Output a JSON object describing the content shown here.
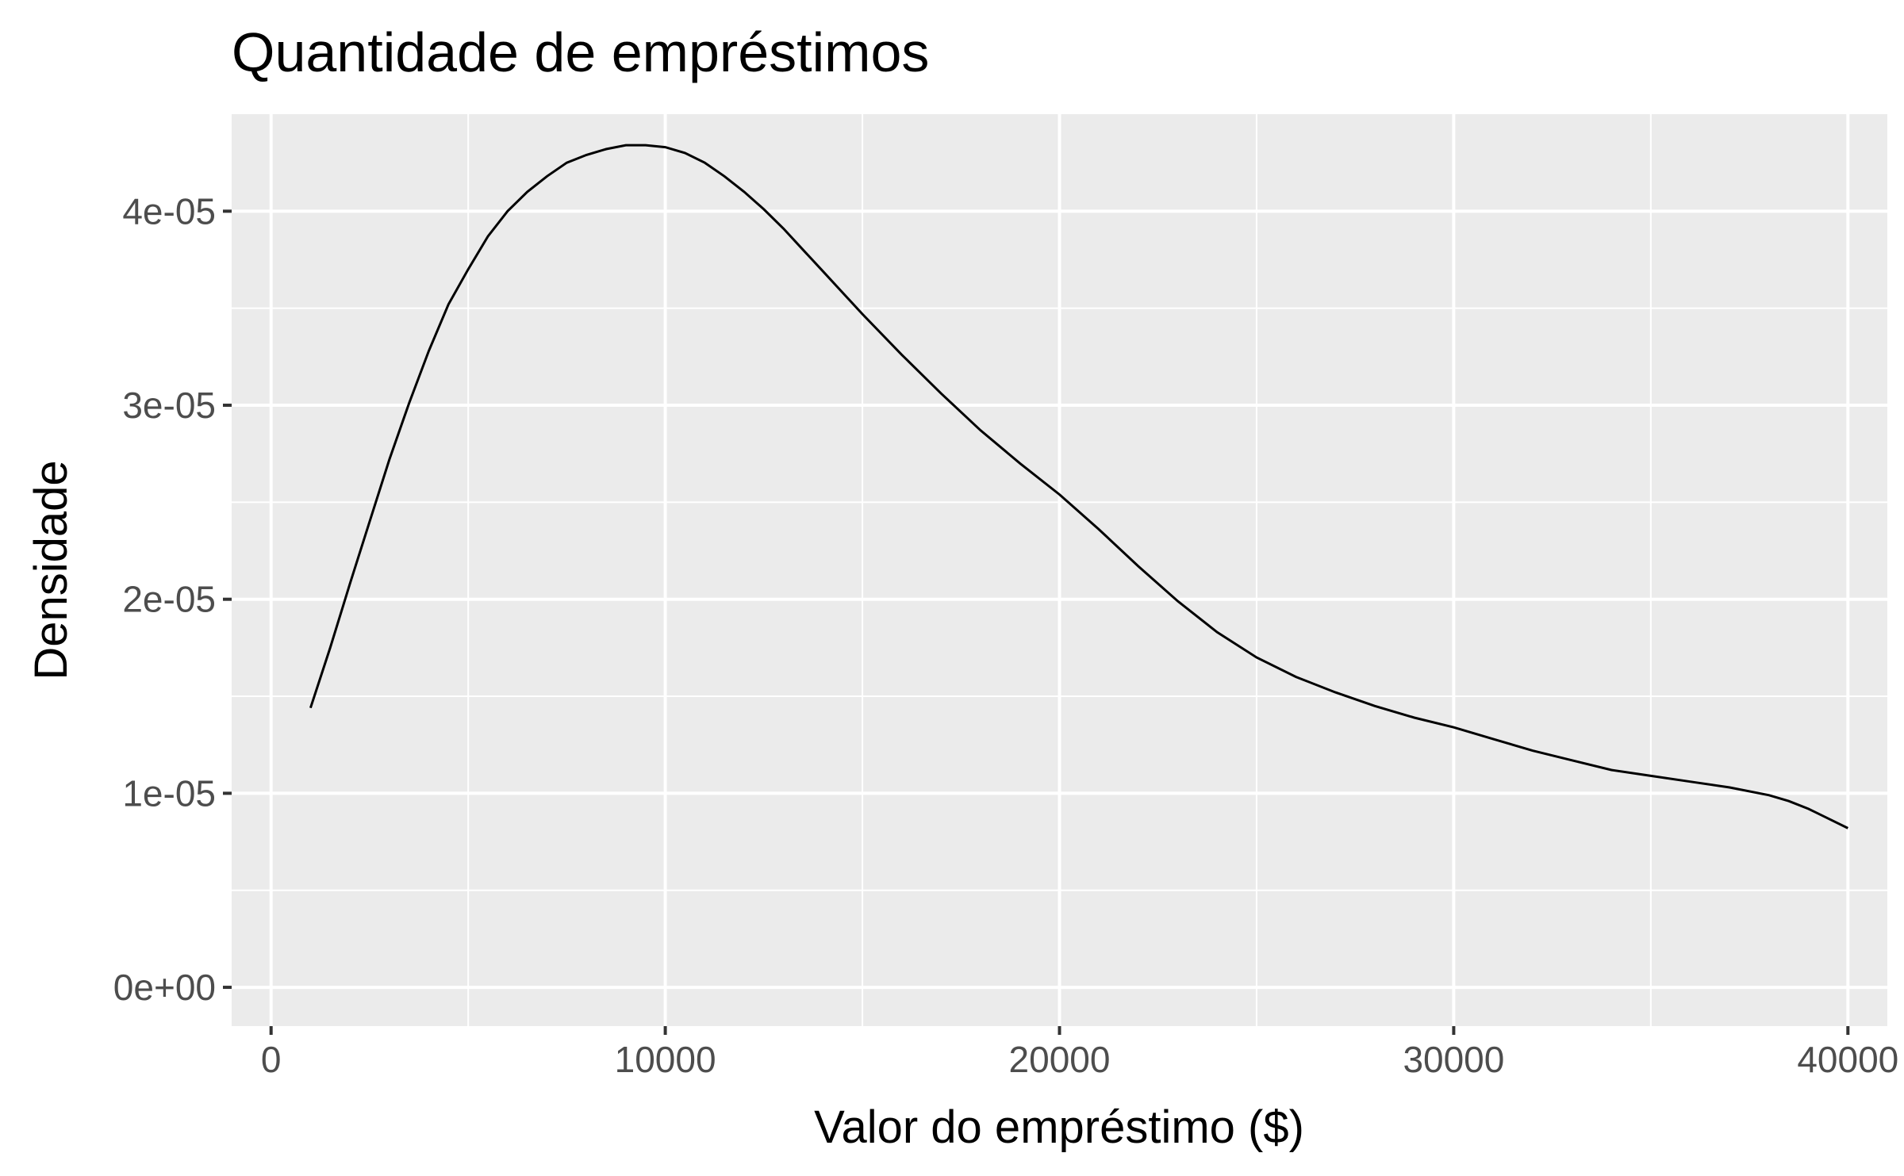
{
  "chart_data": {
    "type": "line",
    "title": "Quantidade de empréstimos",
    "xlabel": "Valor do empréstimo ($)",
    "ylabel": "Densidade",
    "xlim": [
      -1000,
      41000
    ],
    "ylim": [
      -2e-06,
      4.5e-05
    ],
    "x_ticks": [
      0,
      10000,
      20000,
      30000,
      40000
    ],
    "x_tick_labels": [
      "0",
      "10000",
      "20000",
      "30000",
      "40000"
    ],
    "y_ticks": [
      0,
      1e-05,
      2e-05,
      3e-05,
      4e-05
    ],
    "y_tick_labels": [
      "0e+00",
      "1e-05",
      "2e-05",
      "3e-05",
      "4e-05"
    ],
    "grid": true,
    "background_color": "#ebebeb",
    "grid_color": "#ffffff",
    "line_color": "#000000",
    "series": [
      {
        "x": [
          1000,
          1500,
          2000,
          2500,
          3000,
          3500,
          4000,
          4500,
          5000,
          5500,
          6000,
          6500,
          7000,
          7500,
          8000,
          8500,
          9000,
          9500,
          10000,
          10500,
          11000,
          11500,
          12000,
          12500,
          13000,
          13500,
          14000,
          14500,
          15000,
          16000,
          17000,
          18000,
          19000,
          20000,
          21000,
          22000,
          23000,
          24000,
          25000,
          26000,
          27000,
          28000,
          29000,
          30000,
          31000,
          32000,
          33000,
          34000,
          35000,
          36000,
          37000,
          38000,
          38500,
          39000,
          39500,
          40000
        ],
        "y": [
          1.44e-05,
          1.75e-05,
          2.08e-05,
          2.4e-05,
          2.72e-05,
          3.01e-05,
          3.28e-05,
          3.52e-05,
          3.7e-05,
          3.87e-05,
          4e-05,
          4.1e-05,
          4.18e-05,
          4.25e-05,
          4.29e-05,
          4.32e-05,
          4.34e-05,
          4.34e-05,
          4.33e-05,
          4.3e-05,
          4.25e-05,
          4.18e-05,
          4.1e-05,
          4.01e-05,
          3.91e-05,
          3.8e-05,
          3.69e-05,
          3.58e-05,
          3.47e-05,
          3.26e-05,
          3.06e-05,
          2.87e-05,
          2.7e-05,
          2.54e-05,
          2.36e-05,
          2.17e-05,
          1.99e-05,
          1.83e-05,
          1.7e-05,
          1.6e-05,
          1.52e-05,
          1.45e-05,
          1.39e-05,
          1.34e-05,
          1.28e-05,
          1.22e-05,
          1.17e-05,
          1.12e-05,
          1.09e-05,
          1.06e-05,
          1.03e-05,
          9.9e-06,
          9.6e-06,
          9.2e-06,
          8.7e-06,
          8.2e-06
        ]
      }
    ]
  }
}
